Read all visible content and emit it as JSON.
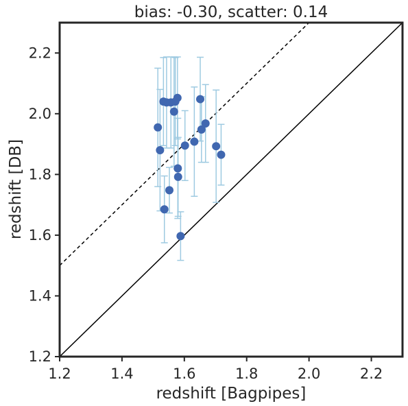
{
  "chart_data": {
    "type": "scatter",
    "title": "bias: -0.30, scatter: 0.14",
    "xlabel": "redshift [Bagpipes]",
    "ylabel": "redshift [DB]",
    "xlim": [
      1.2,
      2.3
    ],
    "ylim": [
      1.2,
      2.3
    ],
    "xticks": [
      "1.2",
      "1.4",
      "1.6",
      "1.8",
      "2.0",
      "2.2"
    ],
    "yticks": [
      "1.2",
      "1.4",
      "1.6",
      "1.8",
      "2.0",
      "2.2"
    ],
    "grid": false,
    "reference_lines": [
      {
        "style": "solid",
        "slope": 1,
        "intercept": 0
      },
      {
        "style": "dashed",
        "slope": 1,
        "intercept": 0.3
      }
    ],
    "points": [
      {
        "x": 1.515,
        "y": 1.955,
        "err": 0.195
      },
      {
        "x": 1.522,
        "y": 1.88,
        "err": 0.2
      },
      {
        "x": 1.533,
        "y": 2.04,
        "err": 0.145
      },
      {
        "x": 1.536,
        "y": 1.685,
        "err": 0.11
      },
      {
        "x": 1.543,
        "y": 2.037,
        "err": 0.15
      },
      {
        "x": 1.552,
        "y": 1.748,
        "err": 0.075
      },
      {
        "x": 1.557,
        "y": 2.037,
        "err": 0.15
      },
      {
        "x": 1.567,
        "y": 2.007,
        "err": 0.18
      },
      {
        "x": 1.571,
        "y": 2.04,
        "err": 0.145
      },
      {
        "x": 1.578,
        "y": 2.052,
        "err": 0.135
      },
      {
        "x": 1.579,
        "y": 1.82,
        "err": 0.165
      },
      {
        "x": 1.58,
        "y": 1.792,
        "err": 0.13
      },
      {
        "x": 1.588,
        "y": 1.597,
        "err": 0.08
      },
      {
        "x": 1.602,
        "y": 1.895,
        "err": 0.115
      },
      {
        "x": 1.632,
        "y": 1.908,
        "err": 0.18
      },
      {
        "x": 1.651,
        "y": 2.048,
        "err": 0.138
      },
      {
        "x": 1.655,
        "y": 1.948,
        "err": 0.108
      },
      {
        "x": 1.668,
        "y": 1.968,
        "err": 0.128
      },
      {
        "x": 1.702,
        "y": 1.893,
        "err": 0.185
      },
      {
        "x": 1.718,
        "y": 1.865,
        "err": 0.1
      }
    ],
    "colors": {
      "point": "#4067b0",
      "errorbar": "#9ecae1",
      "line": "#000000",
      "frame": "#262626"
    }
  }
}
